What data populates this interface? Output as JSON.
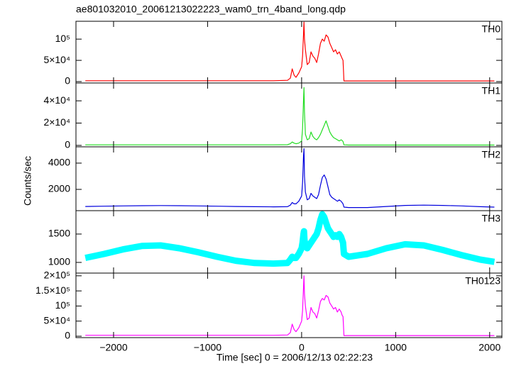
{
  "chart_data": [
    {
      "type": "line",
      "title": "ae801032010_20061213022223_wam0_trn_4band_long.qdp",
      "x": [
        -2300,
        -2100,
        -1900,
        -1700,
        -1500,
        -1300,
        -1100,
        -900,
        -700,
        -500,
        -300,
        -150,
        -120,
        -100,
        -80,
        -60,
        -30,
        0,
        10,
        20,
        25,
        30,
        40,
        60,
        80,
        100,
        120,
        140,
        160,
        180,
        200,
        220,
        240,
        260,
        280,
        300,
        320,
        340,
        360,
        380,
        400,
        420,
        430,
        440,
        450,
        500,
        700,
        900,
        1100,
        1300,
        1500,
        1700,
        1900,
        2050
      ],
      "xlim": [
        -2400,
        2130
      ],
      "ylim": [
        -3300,
        142000
      ],
      "yticks": [
        0,
        {
          "value": 50000,
          "label": "5×10⁴"
        },
        {
          "value": 100000,
          "label": "10⁵"
        }
      ],
      "series": [
        {
          "name": "TH0",
          "color": "#ff0000",
          "values": [
            2000,
            2000,
            2000,
            2000,
            2000,
            2000,
            2000,
            2000,
            2000,
            2000,
            2000,
            3000,
            8000,
            30000,
            15000,
            10000,
            20000,
            35000,
            60000,
            110000,
            140000,
            100000,
            75000,
            40000,
            45000,
            70000,
            60000,
            55000,
            45000,
            65000,
            90000,
            100000,
            95000,
            110000,
            105000,
            90000,
            80000,
            70000,
            75000,
            65000,
            70000,
            60000,
            55000,
            50000,
            1500,
            1500,
            1500,
            1500,
            1500,
            1500,
            1500,
            1500,
            1500,
            1500
          ]
        }
      ]
    },
    {
      "type": "line",
      "x": [
        -2300,
        -2100,
        -1900,
        -1700,
        -1500,
        -1300,
        -1100,
        -900,
        -700,
        -500,
        -300,
        -150,
        -120,
        -100,
        -80,
        -60,
        -30,
        0,
        10,
        20,
        25,
        30,
        40,
        60,
        80,
        100,
        120,
        140,
        160,
        180,
        200,
        220,
        240,
        260,
        280,
        300,
        320,
        340,
        360,
        380,
        400,
        420,
        430,
        440,
        450,
        500,
        700,
        900,
        1100,
        1300,
        1500,
        1700,
        1900,
        2050
      ],
      "xlim": [
        -2400,
        2130
      ],
      "ylim": [
        -1300,
        56000
      ],
      "yticks": [
        0,
        {
          "value": 20000,
          "label": "2×10⁴"
        },
        {
          "value": 40000,
          "label": "4×10⁴"
        }
      ],
      "series": [
        {
          "name": "TH1",
          "color": "#22dd22",
          "values": [
            500,
            500,
            500,
            500,
            500,
            500,
            500,
            500,
            500,
            500,
            500,
            600,
            1500,
            3000,
            2000,
            1500,
            2000,
            4000,
            15000,
            40000,
            52000,
            30000,
            10000,
            5000,
            6000,
            12000,
            8000,
            6000,
            5000,
            7000,
            10000,
            14000,
            18000,
            22000,
            17000,
            12000,
            9000,
            7000,
            6000,
            5000,
            4000,
            5000,
            4500,
            3500,
            500,
            300,
            300,
            300,
            300,
            300,
            300,
            300,
            300,
            300
          ]
        }
      ]
    },
    {
      "type": "line",
      "ylabel": "Counts/sec",
      "x": [
        -2300,
        -2100,
        -1900,
        -1700,
        -1500,
        -1300,
        -1100,
        -900,
        -700,
        -500,
        -300,
        -150,
        -120,
        -100,
        -80,
        -60,
        -30,
        0,
        10,
        20,
        25,
        30,
        40,
        60,
        80,
        100,
        120,
        140,
        160,
        180,
        200,
        220,
        240,
        260,
        280,
        300,
        320,
        340,
        360,
        380,
        400,
        420,
        430,
        440,
        450,
        500,
        700,
        900,
        1100,
        1300,
        1500,
        1700,
        1900,
        2050
      ],
      "xlim": [
        -2400,
        2130
      ],
      "ylim": [
        380,
        5240
      ],
      "yticks": [
        2000,
        4000
      ],
      "series": [
        {
          "name": "TH2",
          "color": "#0000dd",
          "values": [
            700,
            720,
            740,
            760,
            770,
            760,
            740,
            720,
            700,
            680,
            670,
            680,
            800,
            1000,
            900,
            900,
            1100,
            1500,
            2500,
            4500,
            5100,
            3000,
            1800,
            1200,
            1300,
            1700,
            1500,
            1400,
            1300,
            1600,
            2300,
            2900,
            3100,
            2800,
            2200,
            1600,
            1400,
            1300,
            1200,
            1100,
            1200,
            1100,
            1000,
            900,
            650,
            620,
            620,
            700,
            780,
            800,
            780,
            740,
            680,
            650
          ]
        }
      ]
    },
    {
      "type": "line",
      "x": [
        -2300,
        -2100,
        -1900,
        -1700,
        -1500,
        -1300,
        -1100,
        -900,
        -700,
        -500,
        -300,
        -150,
        -120,
        -100,
        -80,
        -60,
        -30,
        0,
        10,
        20,
        25,
        30,
        40,
        60,
        80,
        100,
        120,
        140,
        160,
        180,
        200,
        220,
        240,
        260,
        280,
        300,
        320,
        340,
        360,
        380,
        400,
        420,
        430,
        440,
        450,
        500,
        700,
        900,
        1100,
        1300,
        1500,
        1700,
        1900,
        2050
      ],
      "xlim": [
        -2400,
        2130
      ],
      "ylim": [
        812,
        1912
      ],
      "yticks": [
        1000,
        1500
      ],
      "series": [
        {
          "name": "TH3",
          "color": "#00ffff",
          "values": [
            1080,
            1150,
            1230,
            1290,
            1300,
            1250,
            1180,
            1100,
            1030,
            990,
            980,
            990,
            1050,
            1100,
            1080,
            1080,
            1150,
            1250,
            1350,
            1500,
            1550,
            1400,
            1300,
            1250,
            1300,
            1350,
            1400,
            1450,
            1500,
            1600,
            1750,
            1850,
            1800,
            1700,
            1600,
            1550,
            1500,
            1450,
            1480,
            1450,
            1500,
            1450,
            1400,
            1350,
            1150,
            1100,
            1150,
            1250,
            1320,
            1300,
            1220,
            1130,
            1050,
            1010
          ]
        }
      ]
    },
    {
      "type": "line",
      "xlabel": "Time [sec] 0 = 2006/12/13 02:22:23",
      "x": [
        -2300,
        -2100,
        -1900,
        -1700,
        -1500,
        -1300,
        -1100,
        -900,
        -700,
        -500,
        -300,
        -150,
        -120,
        -100,
        -80,
        -60,
        -30,
        0,
        10,
        20,
        25,
        30,
        40,
        60,
        80,
        100,
        120,
        140,
        160,
        180,
        200,
        220,
        240,
        260,
        280,
        300,
        320,
        340,
        360,
        380,
        400,
        420,
        430,
        440,
        450,
        500,
        700,
        900,
        1100,
        1300,
        1500,
        1700,
        1900,
        2050
      ],
      "xlim": [
        -2400,
        2130
      ],
      "ylim": [
        -4700,
        209000
      ],
      "xticks": [
        {
          "value": -2000,
          "label": "−2000"
        },
        {
          "value": -1000,
          "label": "−1000"
        },
        0,
        1000,
        2000
      ],
      "yticks": [
        0,
        {
          "value": 50000,
          "label": "5×10⁴"
        },
        {
          "value": 100000,
          "label": "10⁵"
        },
        {
          "value": 150000,
          "label": "1.5×10⁵"
        },
        {
          "value": 200000,
          "label": "2×10⁵"
        }
      ],
      "series": [
        {
          "name": "TH0123",
          "color": "#ff00ff",
          "values": [
            3000,
            3000,
            3000,
            3000,
            3000,
            3000,
            3000,
            3000,
            3000,
            3000,
            3000,
            4000,
            12000,
            40000,
            22000,
            15000,
            28000,
            50000,
            85000,
            160000,
            200000,
            140000,
            100000,
            55000,
            60000,
            95000,
            80000,
            75000,
            60000,
            85000,
            115000,
            125000,
            120000,
            135000,
            130000,
            110000,
            100000,
            90000,
            95000,
            80000,
            90000,
            80000,
            70000,
            65000,
            2000,
            2000,
            2000,
            2000,
            2000,
            2000,
            2000,
            2000,
            2000,
            2000
          ]
        }
      ]
    }
  ]
}
